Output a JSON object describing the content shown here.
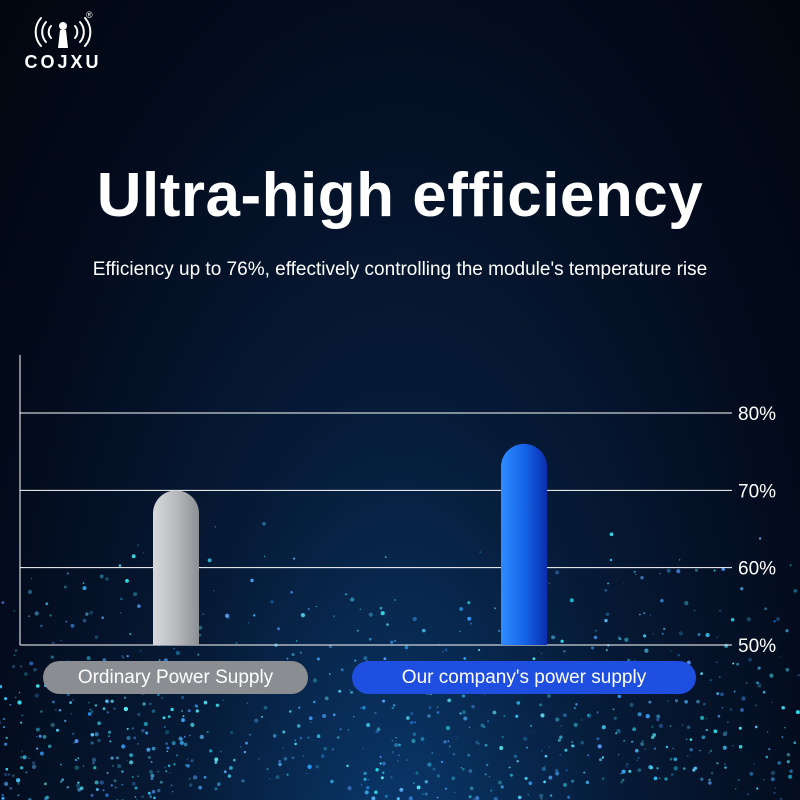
{
  "brand": {
    "name": "COJXU",
    "registered_mark": "®"
  },
  "headline": "Ultra-high efficiency",
  "subheadline": "Efficiency up to 76%, effectively controlling the module's temperature rise",
  "colors": {
    "ordinary": "#b5b7ba",
    "company": "#1a6cf0",
    "grid": "#ffffff"
  },
  "chart_data": {
    "type": "bar",
    "categories": [
      "Ordinary Power Supply",
      "Our company's power supply"
    ],
    "values": [
      70,
      76
    ],
    "ylim": [
      50,
      80
    ],
    "y_ticks": [
      "50%",
      "60%",
      "70%",
      "80%"
    ],
    "y_tick_values": [
      50,
      60,
      70,
      80
    ],
    "y_axis_side": "right",
    "grid": true
  }
}
